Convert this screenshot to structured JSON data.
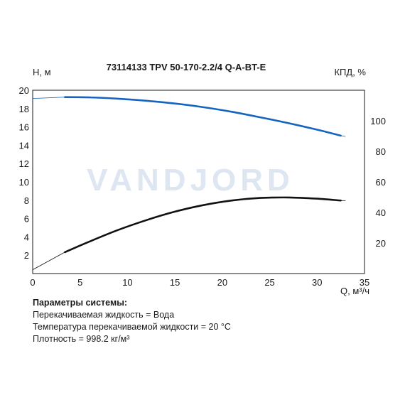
{
  "chart_data": {
    "type": "line",
    "title": "73114133 TPV 50-170-2.2/4 Q-A-BT-E",
    "watermark": "VANDJORD",
    "xlabel": "Q, м³/ч",
    "ylabel_left": "H, м",
    "ylabel_right": "КПД, %",
    "xlim": [
      0,
      35
    ],
    "ylim_left": [
      0,
      20
    ],
    "ylim_right": [
      0,
      120
    ],
    "x_ticks": [
      0,
      5,
      10,
      15,
      20,
      25,
      30,
      35
    ],
    "y_left_ticks": [
      2,
      4,
      6,
      8,
      10,
      12,
      14,
      16,
      18,
      20
    ],
    "y_right_ticks": [
      20,
      40,
      60,
      80,
      100
    ],
    "grid": false,
    "series": [
      {
        "axis": "left",
        "color": "#1565c0",
        "points": [
          [
            3.4,
            19.25
          ],
          [
            6,
            19.22
          ],
          [
            9,
            19.08
          ],
          [
            12,
            18.85
          ],
          [
            15,
            18.55
          ],
          [
            18,
            18.15
          ],
          [
            21,
            17.65
          ],
          [
            24,
            17.05
          ],
          [
            27,
            16.4
          ],
          [
            30,
            15.7
          ],
          [
            32.5,
            15.05
          ]
        ],
        "extension": [
          [
            0,
            19.1
          ],
          [
            3.4,
            19.25
          ],
          [
            32.5,
            15.05
          ],
          [
            33,
            14.95
          ]
        ]
      },
      {
        "axis": "right",
        "color": "#111111",
        "points": [
          [
            3.4,
            14
          ],
          [
            6,
            21
          ],
          [
            9,
            28.5
          ],
          [
            12,
            35
          ],
          [
            15,
            40.5
          ],
          [
            18,
            44.8
          ],
          [
            21,
            47.8
          ],
          [
            24,
            49.5
          ],
          [
            27,
            49.8
          ],
          [
            30,
            49
          ],
          [
            32.5,
            47.8
          ]
        ],
        "extension": [
          [
            0,
            2.5
          ],
          [
            3.4,
            14
          ],
          [
            32.5,
            47.8
          ],
          [
            33,
            47.6
          ]
        ]
      }
    ]
  },
  "params": {
    "heading": "Параметры системы:",
    "lines": [
      "Перекачиваемая жидкость = Вода",
      "Температура перекачиваемой жидкости = 20 °C",
      "Плотность = 998.2 кг/м³"
    ]
  }
}
